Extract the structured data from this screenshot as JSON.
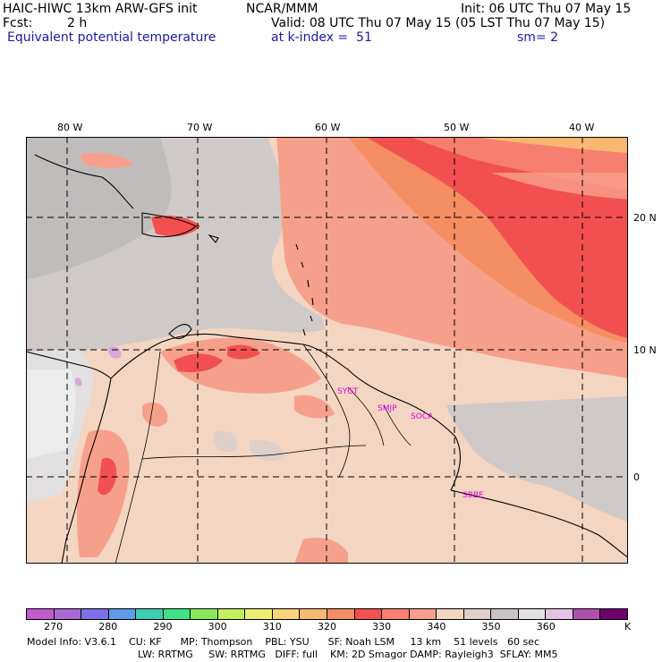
{
  "header": {
    "model": "HAIC-HIWC 13km ARW-GFS init",
    "org": "NCAR/MMM",
    "init": "Init: 06 UTC Thu 07 May 15",
    "fcst_label": "Fcst:",
    "fcst_value": "2 h",
    "valid": "Valid: 08 UTC Thu 07 May 15 (05 LST Thu 07 May 15)",
    "field": "Equivalent potential temperature",
    "level": "at k-index =  51",
    "smooth": "sm= 2"
  },
  "map": {
    "lon_labels": [
      "80 W",
      "70 W",
      "60 W",
      "50 W",
      "40 W"
    ],
    "lat_labels": [
      "20 N",
      "10 N",
      "0"
    ],
    "stations": [
      "SYGT",
      "SMJP",
      "SOCA",
      "SBBE"
    ],
    "colors": {
      "pale_peach": "#f3d5c2",
      "salmon": "#f6a08b",
      "coral": "#f77f6f",
      "red": "#f2504f",
      "orange": "#f68e64",
      "light_orange": "#f9b872",
      "grey": "#cfc9c7",
      "dark_grey": "#b4b1b1",
      "light_grey": "#dcdcdc",
      "white_grey": "#ececec",
      "lavender": "#d9a7d9"
    }
  },
  "colorbar": {
    "unit": "K",
    "labels": [
      "270",
      "280",
      "290",
      "300",
      "310",
      "320",
      "330",
      "340",
      "350",
      "360"
    ],
    "colors": [
      "#c25ccc",
      "#a96ad8",
      "#7a72e2",
      "#5d9ce8",
      "#3fcdb4",
      "#40e086",
      "#85e85a",
      "#c3ee5f",
      "#ecee74",
      "#f8d57a",
      "#f9b872",
      "#f68e64",
      "#f2504f",
      "#f77f6f",
      "#f6a08b",
      "#f3d5c2",
      "#dcd0c8",
      "#c9c4c2",
      "#e2e0e0",
      "#e5c2e5",
      "#b04fae",
      "#6e006e"
    ]
  },
  "footer": {
    "line1": "Model Info: V3.6.1    CU: KF      MP: Thompson    PBL: YSU      SF: Noah LSM     13 km    51 levels   60 sec",
    "line2": "LW: RRTMG     SW: RRTMG   DIFF: full    KM: 2D Smagor DAMP: Rayleigh3  SFLAY: MM5"
  }
}
